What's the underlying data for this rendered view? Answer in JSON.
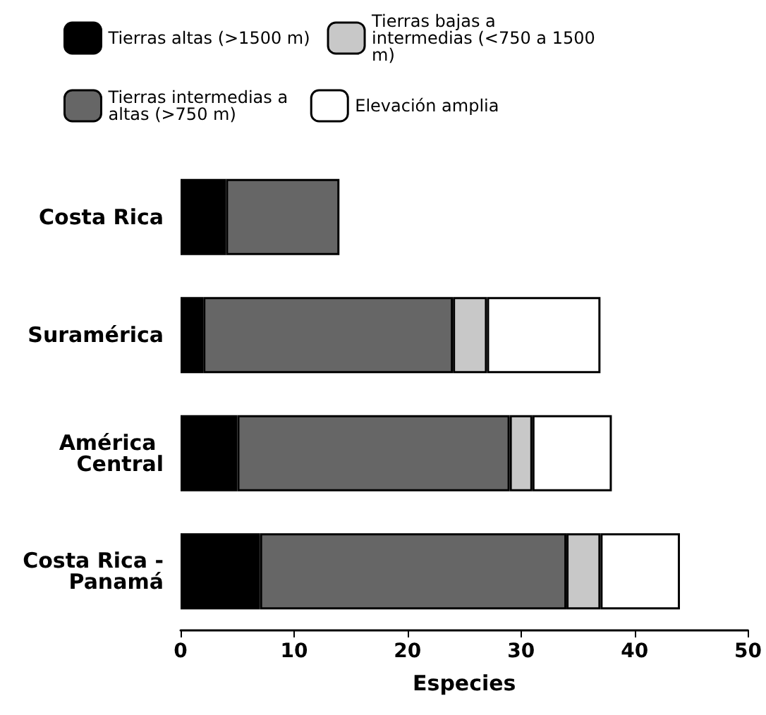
{
  "chart_data": {
    "type": "bar",
    "orientation": "horizontal",
    "stacked": true,
    "xlabel": "Especies",
    "categories": [
      "Costa Rica",
      "Suramérica",
      "América Central",
      "Costa Rica - Panamá"
    ],
    "series": [
      {
        "name": "Tierras altas (>1500 m)",
        "color": "#000000",
        "values": [
          4,
          2,
          5,
          7
        ]
      },
      {
        "name": "Tierras intermedias a altas (>750 m)",
        "color": "#666666",
        "values": [
          10,
          22,
          24,
          27
        ]
      },
      {
        "name": "Tierras bajas a intermedias (<750 a 1500 m)",
        "color": "#c8c8c8",
        "values": [
          null,
          3,
          2,
          3
        ]
      },
      {
        "name": "Elevación amplia",
        "color": "#ffffff",
        "values": [
          null,
          10,
          7,
          7
        ]
      }
    ],
    "xlim": [
      0,
      50
    ],
    "xticks": [
      0,
      10,
      20,
      30,
      40,
      50
    ],
    "grid": false,
    "legend": "top"
  }
}
